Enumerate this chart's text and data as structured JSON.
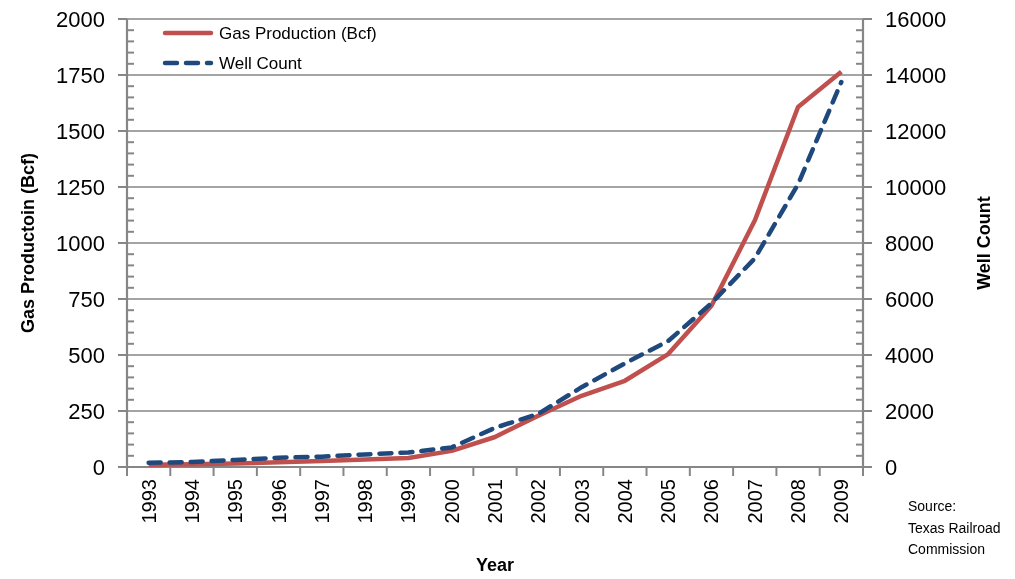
{
  "chart_data": {
    "type": "line",
    "xlabel": "Year",
    "ylabel": "Gas Productoin (Bcf)",
    "y2label": "Well Count",
    "categories": [
      "1993",
      "1994",
      "1995",
      "1996",
      "1997",
      "1998",
      "1999",
      "2000",
      "2001",
      "2002",
      "2003",
      "2004",
      "2005",
      "2006",
      "2007",
      "2008",
      "2009"
    ],
    "series": [
      {
        "name": "Gas Production (Bcf)",
        "color": "#c0504d",
        "line_style": "solid",
        "values": [
          10,
          12,
          16,
          21,
          27,
          33,
          40,
          72,
          134,
          229,
          318,
          385,
          504,
          720,
          1100,
          1607,
          1765
        ]
      },
      {
        "name": "Well Count",
        "color": "#1f497d",
        "line_style": "dashed",
        "axis": "y2",
        "values": [
          150,
          180,
          250,
          330,
          370,
          450,
          520,
          700,
          1400,
          1900,
          2850,
          3700,
          4500,
          5850,
          7450,
          10100,
          13750
        ]
      }
    ],
    "ylim": [
      0,
      2000
    ],
    "yticks": [
      0,
      {
        "value": 50,
        "label": null
      },
      {
        "value": 100,
        "label": null
      },
      {
        "value": 150,
        "label": null
      },
      {
        "value": 200,
        "label": null
      },
      250,
      {
        "value": 300,
        "label": null
      },
      {
        "value": 350,
        "label": null
      },
      {
        "value": 400,
        "label": null
      },
      {
        "value": 450,
        "label": null
      },
      500,
      {
        "value": 550,
        "label": null
      },
      {
        "value": 600,
        "label": null
      },
      {
        "value": 650,
        "label": null
      },
      {
        "value": 700,
        "label": null
      },
      750,
      {
        "value": 800,
        "label": null
      },
      {
        "value": 850,
        "label": null
      },
      {
        "value": 900,
        "label": null
      },
      {
        "value": 950,
        "label": null
      },
      1000,
      {
        "value": 1050,
        "label": null
      },
      {
        "value": 1100,
        "label": null
      },
      {
        "value": 1150,
        "label": null
      },
      {
        "value": 1200,
        "label": null
      },
      1250,
      {
        "value": 1300,
        "label": null
      },
      {
        "value": 1350,
        "label": null
      },
      {
        "value": 1400,
        "label": null
      },
      {
        "value": 1450,
        "label": null
      },
      1500,
      {
        "value": 1550,
        "label": null
      },
      {
        "value": 1600,
        "label": null
      },
      {
        "value": 1650,
        "label": null
      },
      {
        "value": 1700,
        "label": null
      },
      1750,
      {
        "value": 1800,
        "label": null
      },
      {
        "value": 1850,
        "label": null
      },
      {
        "value": 1900,
        "label": null
      },
      {
        "value": 1950,
        "label": null
      },
      2000
    ],
    "y2lim": [
      0,
      16000
    ],
    "y2ticks": [
      0,
      {
        "value": 400,
        "label": null
      },
      {
        "value": 800,
        "label": null
      },
      {
        "value": 1200,
        "label": null
      },
      {
        "value": 1600,
        "label": null
      },
      2000,
      {
        "value": 2400,
        "label": null
      },
      {
        "value": 2800,
        "label": null
      },
      {
        "value": 3200,
        "label": null
      },
      {
        "value": 3600,
        "label": null
      },
      4000,
      {
        "value": 4400,
        "label": null
      },
      {
        "value": 4800,
        "label": null
      },
      {
        "value": 5200,
        "label": null
      },
      {
        "value": 5600,
        "label": null
      },
      6000,
      {
        "value": 6400,
        "label": null
      },
      {
        "value": 6800,
        "label": null
      },
      {
        "value": 7200,
        "label": null
      },
      {
        "value": 7600,
        "label": null
      },
      8000,
      {
        "value": 8400,
        "label": null
      },
      {
        "value": 8800,
        "label": null
      },
      {
        "value": 9200,
        "label": null
      },
      {
        "value": 9600,
        "label": null
      },
      10000,
      {
        "value": 10400,
        "label": null
      },
      {
        "value": 10800,
        "label": null
      },
      {
        "value": 11200,
        "label": null
      },
      {
        "value": 11600,
        "label": null
      },
      12000,
      {
        "value": 12400,
        "label": null
      },
      {
        "value": 12800,
        "label": null
      },
      {
        "value": 13200,
        "label": null
      },
      {
        "value": 13600,
        "label": null
      },
      14000,
      {
        "value": 14400,
        "label": null
      },
      {
        "value": 14800,
        "label": null
      },
      {
        "value": 15200,
        "label": null
      },
      {
        "value": 15600,
        "label": null
      },
      16000
    ],
    "grid": "y",
    "legend": "top left",
    "annotations": [
      "Source:\nTexas Railroad\nCommission"
    ]
  }
}
